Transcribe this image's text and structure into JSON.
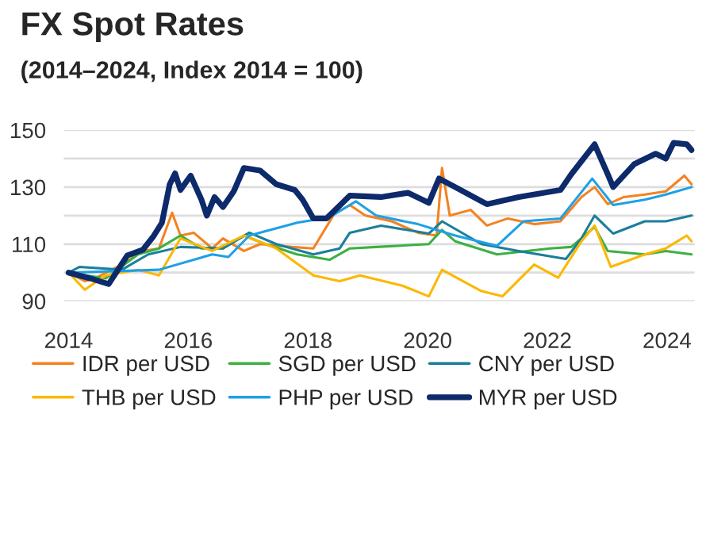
{
  "chart_data": {
    "type": "line",
    "title": "FX Spot Rates",
    "subtitle": "(2014–2024, Index 2014 = 100)",
    "xlim": [
      2013.92,
      2024.46
    ],
    "xticks": [
      2014,
      2016,
      2018,
      2020,
      2022,
      2024
    ],
    "ylim": [
      90,
      150
    ],
    "yticks": [
      90,
      {
        "value": 100,
        "label": null
      },
      110,
      {
        "value": 120,
        "label": null
      },
      130,
      {
        "value": 140,
        "label": null
      },
      150
    ],
    "grid": "y",
    "legend": "bottom",
    "marker": "none",
    "line_style": "solid",
    "series": [
      {
        "name": "IDR per USD",
        "color": "#f58220",
        "x": [
          2014.0,
          2014.27,
          2014.44,
          2014.89,
          2015.24,
          2015.51,
          2015.73,
          2015.87,
          2016.09,
          2016.4,
          2016.58,
          2016.93,
          2017.2,
          2017.73,
          2018.09,
          2018.44,
          2018.7,
          2018.96,
          2019.4,
          2019.84,
          2020.15,
          2020.24,
          2020.37,
          2020.72,
          2020.99,
          2021.34,
          2021.78,
          2022.22,
          2022.57,
          2022.79,
          2023.01,
          2023.28,
          2023.63,
          2023.98,
          2024.29,
          2024.41
        ],
        "values": [
          100,
          97,
          98,
          102.8,
          107.6,
          108.5,
          121,
          113,
          114,
          108.5,
          112,
          107.6,
          110,
          109,
          108.5,
          120.6,
          123.7,
          120,
          118,
          114,
          113,
          136.7,
          120,
          122,
          116.5,
          119,
          117,
          118,
          126.5,
          130,
          124,
          126.5,
          127.4,
          128.5,
          134,
          131
        ]
      },
      {
        "name": "SGD per USD",
        "color": "#3cb043",
        "x": [
          2014.0,
          2014.62,
          2015.16,
          2015.51,
          2015.87,
          2016.22,
          2016.58,
          2016.93,
          2017.29,
          2017.82,
          2018.36,
          2018.7,
          2019.14,
          2020.02,
          2020.24,
          2020.46,
          2021.16,
          2022.04,
          2022.4,
          2022.79,
          2023.01,
          2023.63,
          2023.98,
          2024.41
        ],
        "values": [
          100,
          98,
          106.4,
          108.5,
          113,
          108.5,
          108.5,
          113,
          110,
          106.4,
          104.5,
          108.5,
          109,
          110,
          115,
          111,
          106.4,
          108.5,
          109,
          116,
          107.6,
          106.4,
          107.6,
          106.4
        ]
      },
      {
        "name": "CNY per USD",
        "color": "#1a7f9a",
        "x": [
          2014.0,
          2014.18,
          2014.89,
          2015.33,
          2015.87,
          2016.58,
          2017.02,
          2017.47,
          2018.09,
          2018.53,
          2018.7,
          2019.22,
          2020.02,
          2020.24,
          2020.9,
          2021.52,
          2022.31,
          2022.57,
          2022.79,
          2023.1,
          2023.63,
          2023.98,
          2024.41
        ],
        "values": [
          100,
          102,
          101,
          106.4,
          109,
          108.5,
          114,
          110,
          106.4,
          108.5,
          114,
          116.5,
          113.7,
          118,
          110,
          107.6,
          104.8,
          112,
          120,
          113.7,
          118,
          118,
          120
        ]
      },
      {
        "name": "THB per USD",
        "color": "#fbb800",
        "x": [
          2014.0,
          2014.27,
          2014.62,
          2015.16,
          2015.51,
          2015.87,
          2016.4,
          2016.93,
          2017.47,
          2018.09,
          2018.53,
          2018.87,
          2019.58,
          2020.02,
          2020.24,
          2020.9,
          2021.25,
          2021.78,
          2022.18,
          2022.57,
          2022.79,
          2023.06,
          2023.63,
          2023.98,
          2024.33,
          2024.41
        ],
        "values": [
          100,
          94,
          99,
          101,
          99,
          112,
          107.6,
          113,
          108.5,
          99,
          97,
          99,
          95.4,
          91.7,
          101,
          93.5,
          91.7,
          102.8,
          98.2,
          111,
          116.5,
          102,
          106.4,
          108.5,
          113,
          111
        ]
      },
      {
        "name": "PHP per USD",
        "color": "#1ea0e6",
        "x": [
          2014.0,
          2015.51,
          2016.4,
          2016.67,
          2017.02,
          2017.82,
          2018.36,
          2018.8,
          2019.14,
          2019.84,
          2020.46,
          2021.16,
          2021.6,
          2022.22,
          2022.75,
          2023.1,
          2023.63,
          2023.98,
          2024.41
        ],
        "values": [
          100,
          101,
          106.4,
          105.5,
          113,
          117.5,
          119.4,
          125,
          120,
          117,
          113,
          109.4,
          118,
          119,
          133,
          123.7,
          125.6,
          127.4,
          130
        ]
      },
      {
        "name": "MYR per USD",
        "color": "#0d2a6b",
        "x": [
          2014.0,
          2014.36,
          2014.67,
          2014.98,
          2015.24,
          2015.42,
          2015.56,
          2015.69,
          2015.78,
          2015.87,
          2016.04,
          2016.22,
          2016.31,
          2016.44,
          2016.58,
          2016.76,
          2016.93,
          2017.2,
          2017.47,
          2017.78,
          2017.91,
          2018.09,
          2018.31,
          2018.7,
          2019.22,
          2019.67,
          2020.02,
          2020.19,
          2020.46,
          2020.99,
          2021.52,
          2022.22,
          2022.4,
          2022.79,
          2023.01,
          2023.1,
          2023.45,
          2023.81,
          2023.98,
          2024.11,
          2024.33,
          2024.41
        ],
        "values": [
          100,
          98,
          96,
          106,
          108,
          112.8,
          117.5,
          131,
          134.8,
          129,
          134,
          125.6,
          120,
          126.5,
          123,
          128.5,
          136.7,
          135.8,
          131,
          129,
          125.6,
          119,
          119,
          127,
          126.5,
          128,
          124.5,
          133,
          130,
          124,
          126.5,
          129,
          134.5,
          145,
          134.5,
          130,
          138,
          141.7,
          140,
          145.5,
          145,
          143
        ]
      }
    ]
  }
}
